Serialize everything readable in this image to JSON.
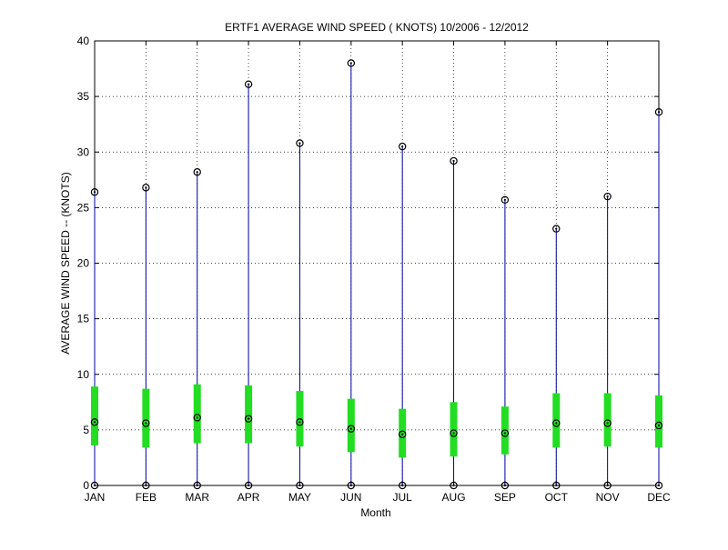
{
  "chart_data": {
    "type": "box",
    "title": "ERTF1  AVERAGE WIND SPEED ( KNOTS) 10/2006 - 12/2012",
    "xlabel": "Month",
    "ylabel": "AVERAGE WIND SPEED -- (KNOTS)",
    "ylim": [
      0,
      40
    ],
    "yticks": [
      0,
      5,
      10,
      15,
      20,
      25,
      30,
      35,
      40
    ],
    "grid": true,
    "categories": [
      "JAN",
      "FEB",
      "MAR",
      "APR",
      "MAY",
      "JUN",
      "JUL",
      "AUG",
      "SEP",
      "OCT",
      "NOV",
      "DEC"
    ],
    "series": [
      {
        "min": [
          0,
          0,
          0,
          0,
          0,
          0,
          0,
          0,
          0,
          0,
          0,
          0
        ],
        "q1": [
          3.6,
          3.4,
          3.8,
          3.8,
          3.5,
          3.0,
          2.5,
          2.6,
          2.8,
          3.4,
          3.5,
          3.4
        ],
        "median": [
          5.7,
          5.6,
          6.1,
          6.0,
          5.7,
          5.1,
          4.6,
          4.7,
          4.7,
          5.6,
          5.6,
          5.4
        ],
        "q3": [
          8.9,
          8.7,
          9.1,
          9.0,
          8.5,
          7.8,
          6.9,
          7.5,
          7.1,
          8.3,
          8.3,
          8.1
        ],
        "max": [
          26.4,
          26.8,
          28.2,
          36.1,
          30.8,
          38.0,
          30.5,
          29.2,
          25.7,
          23.1,
          26.0,
          33.6
        ]
      }
    ],
    "colors": {
      "whisker": "#0000a0",
      "box": "#22dd22",
      "marker": "#000000",
      "grid": "#000000"
    }
  }
}
